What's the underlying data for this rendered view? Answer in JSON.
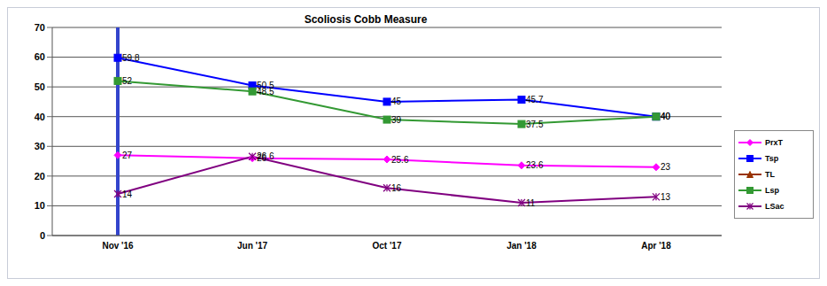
{
  "chart_data": {
    "type": "line",
    "title": "Scoliosis Cobb Measure",
    "categories": [
      "Nov '16",
      "Jun '17",
      "Oct '17",
      "Jan '18",
      "Apr '18"
    ],
    "series": [
      {
        "name": "PrxT",
        "color": "#ff00ff",
        "marker": "diamond",
        "values": [
          27,
          26,
          25.6,
          23.6,
          23
        ]
      },
      {
        "name": "Tsp",
        "color": "#0000ff",
        "marker": "square",
        "values": [
          59.8,
          50.5,
          45,
          45.7,
          40
        ]
      },
      {
        "name": "TL",
        "color": "#993300",
        "marker": "triangle",
        "values": [
          null,
          null,
          null,
          null,
          null
        ]
      },
      {
        "name": "Lsp",
        "color": "#339933",
        "marker": "square",
        "values": [
          52,
          48.5,
          39,
          37.5,
          40
        ]
      },
      {
        "name": "LSac",
        "color": "#800080",
        "marker": "star",
        "values": [
          14,
          26.6,
          16,
          11,
          13
        ]
      }
    ],
    "ylim": [
      0,
      70
    ],
    "yticks": [
      0,
      10,
      20,
      30,
      40,
      50,
      60,
      70
    ],
    "grid": true,
    "legend": "right",
    "data_labels": true
  }
}
